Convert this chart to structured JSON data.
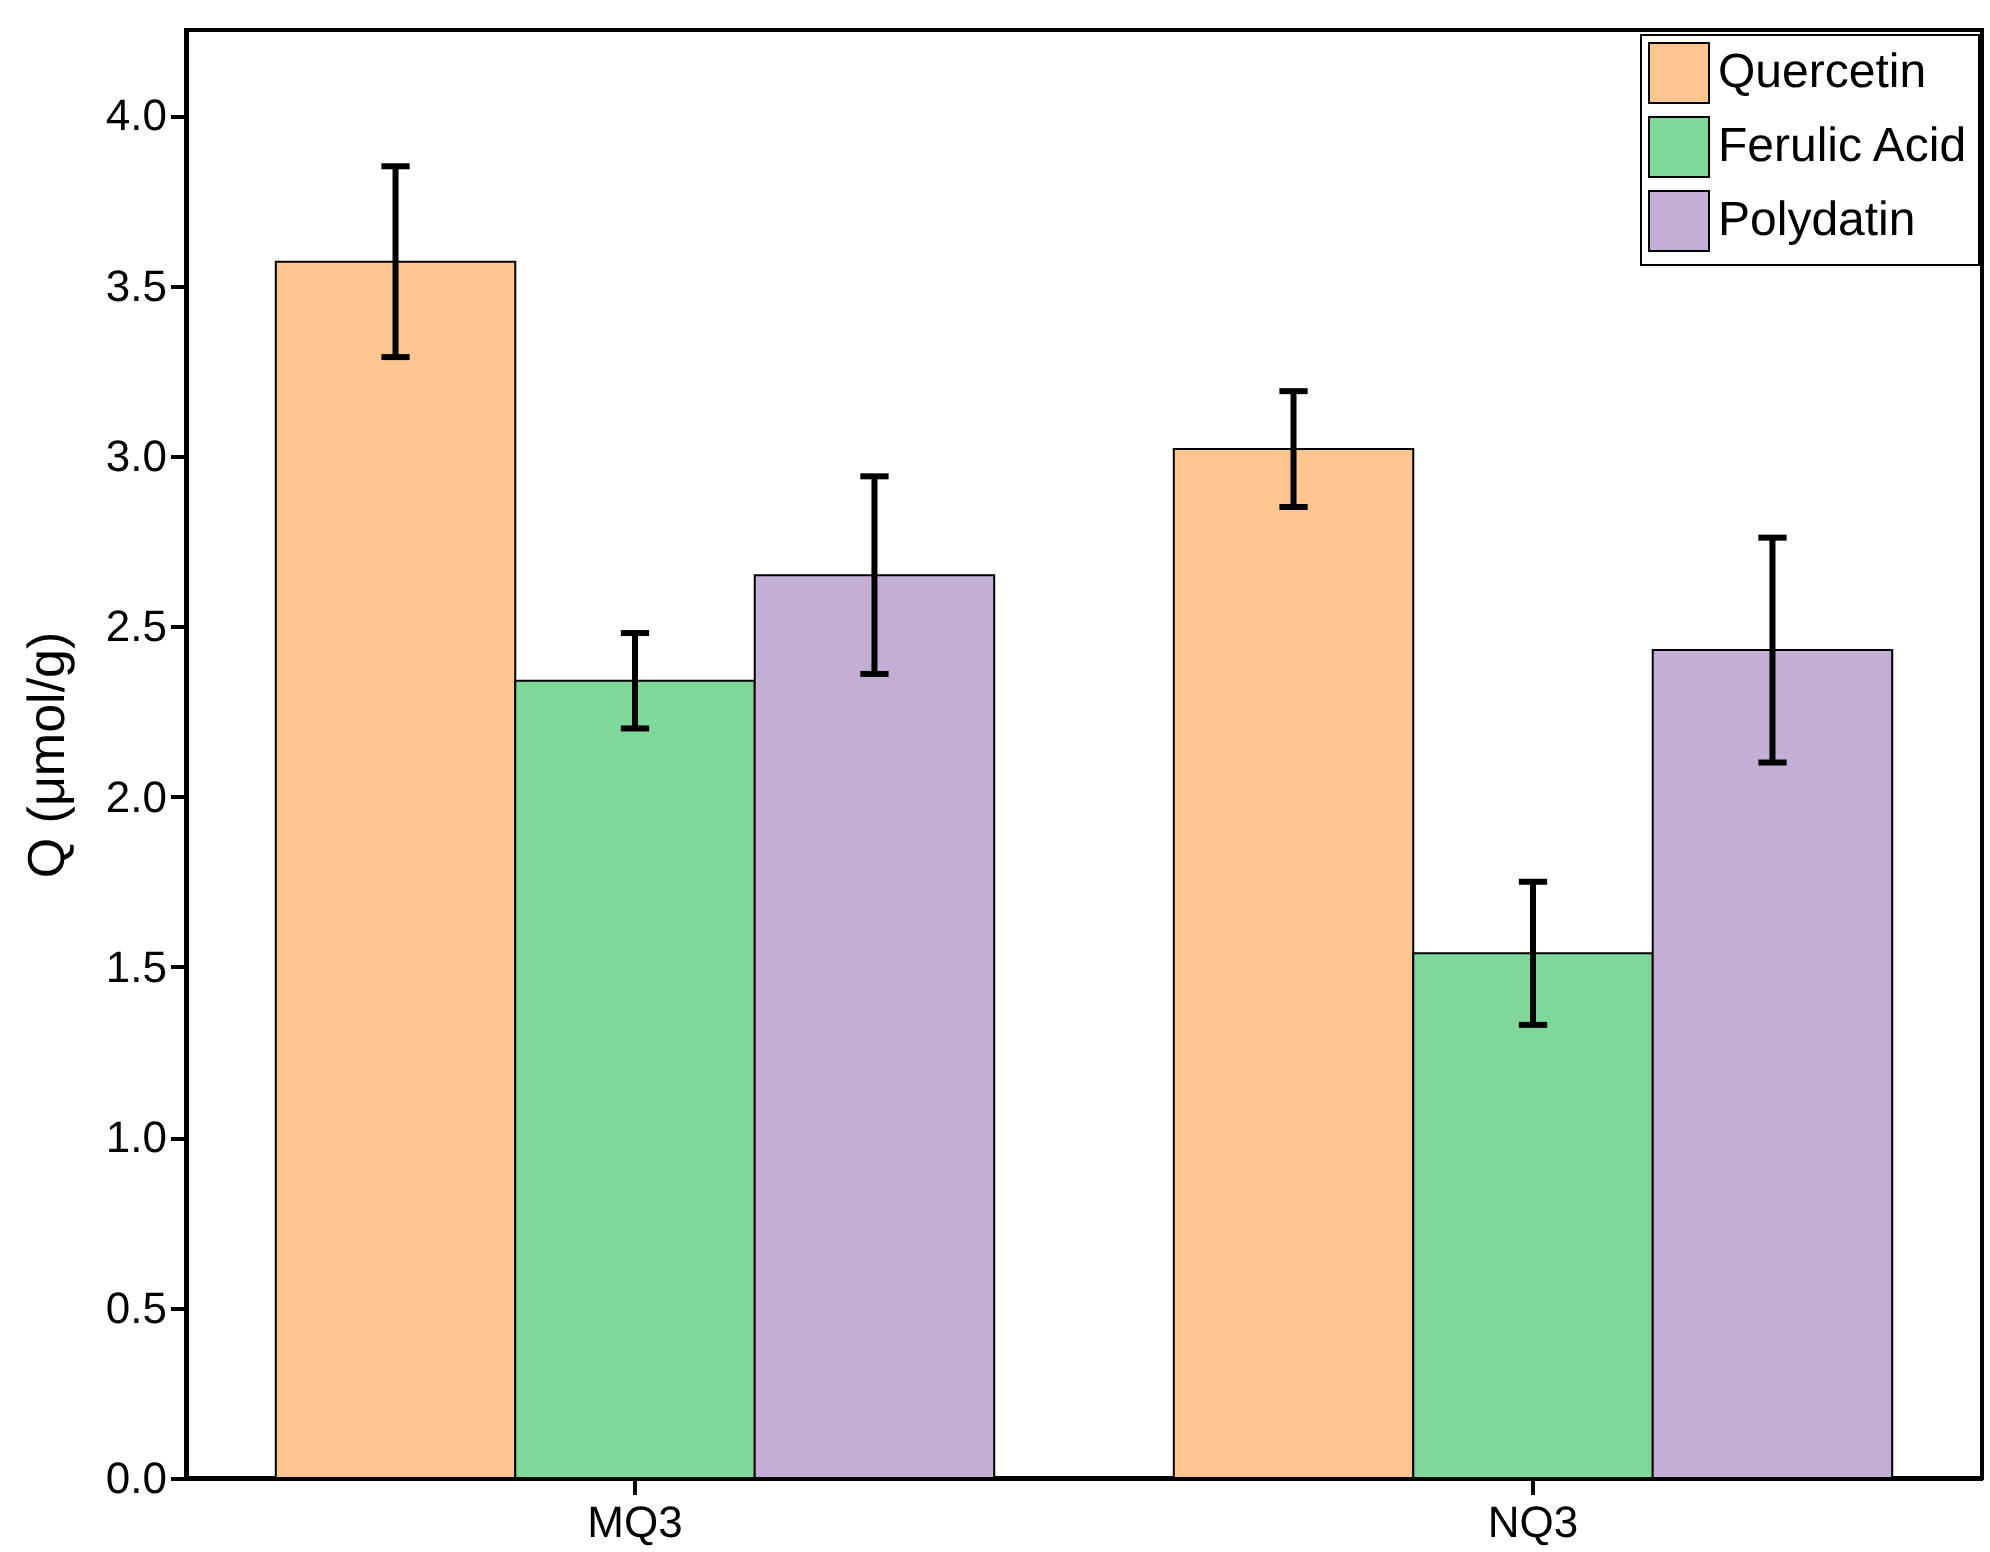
{
  "chart_data": {
    "type": "bar",
    "ylabel": "Q (μmol/g)",
    "categories": [
      "MQ3",
      "NQ3"
    ],
    "series": [
      {
        "name": "Quercetin",
        "color": "#fdc691",
        "values": [
          3.57,
          3.02
        ],
        "errors": [
          0.28,
          0.17
        ]
      },
      {
        "name": "Ferulic Acid",
        "color": "#7fd89a",
        "values": [
          2.34,
          1.54
        ],
        "errors": [
          0.14,
          0.21
        ]
      },
      {
        "name": "Polydatin",
        "color": "#c3afd6",
        "values": [
          2.65,
          2.43
        ],
        "errors": [
          0.29,
          0.33
        ]
      }
    ],
    "ylim": [
      0,
      4.25
    ],
    "yticks": [
      {
        "value": 0,
        "label": "0.0"
      },
      0.5,
      {
        "value": 1,
        "label": "1.0"
      },
      1.5,
      {
        "value": 2,
        "label": "2.0"
      },
      2.5,
      {
        "value": 3,
        "label": "3.0"
      },
      3.5,
      {
        "value": 4,
        "label": "4.0"
      }
    ],
    "legend": "top right",
    "grid": false
  }
}
